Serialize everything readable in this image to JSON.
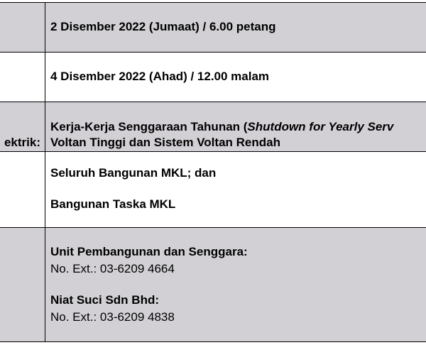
{
  "rows": {
    "start": {
      "value": "2 Disember 2022 (Jumaat) / 6.00 petang"
    },
    "end": {
      "value": "4 Disember 2022 (Ahad) / 12.00 malam"
    },
    "work": {
      "label_fragment": "ektrik:",
      "line1_prefix": "Kerja-Kerja Senggaraan Tahunan (",
      "line1_italic": "Shutdown for Yearly Serv",
      "line2": "Voltan Tinggi dan Sistem Voltan Rendah"
    },
    "location": {
      "line1": "Seluruh Bangunan MKL; dan",
      "line2": "Bangunan Taska MKL"
    },
    "contacts": [
      {
        "name": "Unit Pembangunan dan Senggara:",
        "ext": "No. Ext.: 03-6209 4664"
      },
      {
        "name": "Niat Suci Sdn Bhd:",
        "ext": "No. Ext.: 03-6209 4838"
      }
    ]
  }
}
